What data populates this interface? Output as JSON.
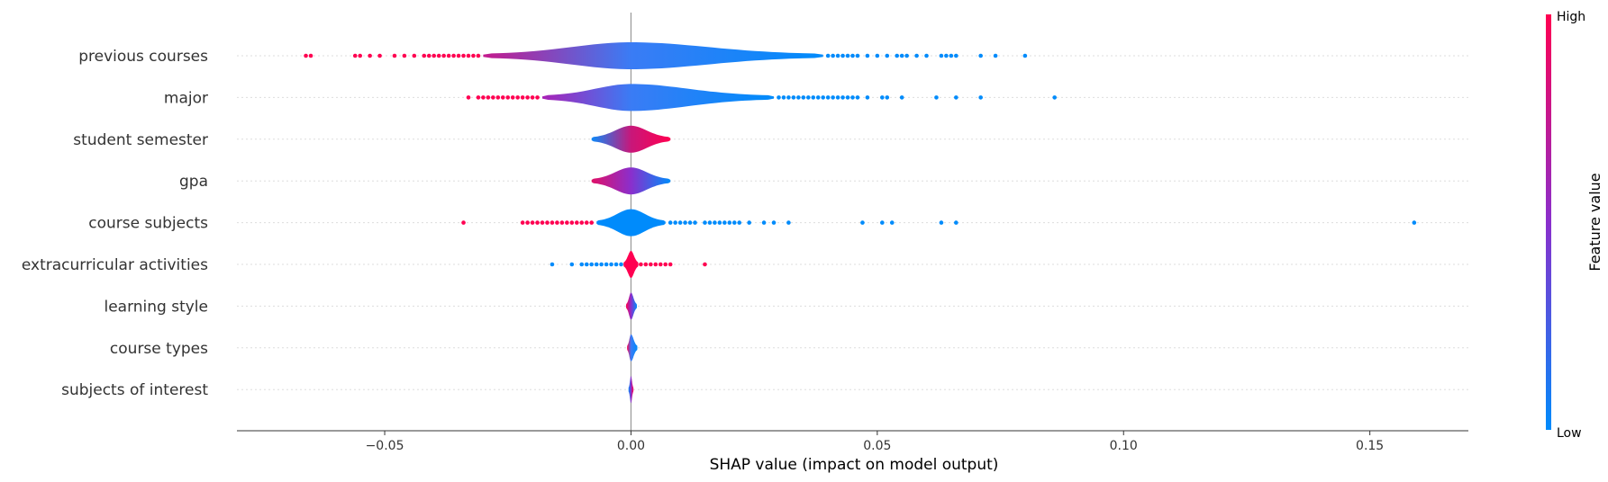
{
  "chart_data": {
    "type": "violin",
    "features": [
      "previous courses",
      "major",
      "student semester",
      "gpa",
      "course subjects",
      "extracurricular activities",
      "learning style",
      "course types",
      "subjects of interest"
    ],
    "xlabel": "SHAP value (impact on model output)",
    "xlim": [
      -0.08,
      0.17
    ],
    "xticks": [
      {
        "value": -0.05,
        "label": "−0.05"
      },
      {
        "value": 0.0,
        "label": "0.00"
      },
      {
        "value": 0.05,
        "label": "0.05"
      },
      {
        "value": 0.1,
        "label": "0.10"
      },
      {
        "value": 0.15,
        "label": "0.15"
      }
    ],
    "colorbar": {
      "title": "Feature value",
      "high_label": "High",
      "low_label": "Low",
      "high_color": "#ff0051",
      "mid_color": "#8a2fcc",
      "low_color": "#008bfb"
    },
    "violins": [
      {
        "feature": "previous courses",
        "left": -0.03,
        "right": 0.039,
        "left_color": "#c41a8c",
        "center_color": "#3a7cf5",
        "right_color": "#008bfb",
        "outliers_high": [
          -0.066,
          -0.065,
          -0.056,
          -0.055,
          -0.053,
          -0.051,
          -0.048,
          -0.046,
          -0.044,
          -0.042,
          -0.041,
          -0.04,
          -0.039,
          -0.038,
          -0.037,
          -0.036,
          -0.035,
          -0.034,
          -0.033,
          -0.032,
          -0.031
        ],
        "outliers_low": [
          0.04,
          0.041,
          0.042,
          0.043,
          0.044,
          0.045,
          0.046,
          0.048,
          0.05,
          0.052,
          0.054,
          0.055,
          0.056,
          0.058,
          0.06,
          0.063,
          0.064,
          0.065,
          0.066,
          0.071,
          0.074,
          0.08
        ]
      },
      {
        "feature": "major",
        "left": -0.018,
        "right": 0.029,
        "left_color": "#a922b6",
        "center_color": "#3a7cf5",
        "right_color": "#008bfb",
        "outliers_high": [
          -0.033,
          -0.031,
          -0.03,
          -0.029,
          -0.028,
          -0.027,
          -0.026,
          -0.025,
          -0.024,
          -0.023,
          -0.022,
          -0.021,
          -0.02,
          -0.019
        ],
        "outliers_low": [
          0.03,
          0.031,
          0.032,
          0.033,
          0.034,
          0.035,
          0.036,
          0.037,
          0.038,
          0.039,
          0.04,
          0.041,
          0.042,
          0.043,
          0.044,
          0.045,
          0.046,
          0.048,
          0.051,
          0.052,
          0.055,
          0.062,
          0.066,
          0.071,
          0.086
        ]
      },
      {
        "feature": "student semester",
        "left": -0.008,
        "right": 0.008,
        "left_color": "#0d89f9",
        "center_color": "#c8177a",
        "right_color": "#ff0051",
        "outliers_high": [],
        "outliers_low": []
      },
      {
        "feature": "gpa",
        "left": -0.008,
        "right": 0.008,
        "left_color": "#e01068",
        "center_color": "#8a2fcc",
        "right_color": "#008bfb",
        "outliers_high": [],
        "outliers_low": []
      },
      {
        "feature": "course subjects",
        "left": -0.007,
        "right": 0.007,
        "left_color": "#008bfb",
        "center_color": "#008bfb",
        "right_color": "#008bfb",
        "outliers_high": [
          -0.034,
          -0.022,
          -0.021,
          -0.02,
          -0.019,
          -0.018,
          -0.017,
          -0.016,
          -0.015,
          -0.014,
          -0.013,
          -0.012,
          -0.011,
          -0.01,
          -0.009,
          -0.008
        ],
        "outliers_low": [
          0.008,
          0.009,
          0.01,
          0.011,
          0.012,
          0.013,
          0.015,
          0.016,
          0.017,
          0.018,
          0.019,
          0.02,
          0.021,
          0.022,
          0.024,
          0.027,
          0.029,
          0.032,
          0.047,
          0.051,
          0.053,
          0.063,
          0.066,
          0.159
        ]
      },
      {
        "feature": "extracurricular activities",
        "left": -0.0015,
        "right": 0.0015,
        "left_color": "#ff0051",
        "center_color": "#ff0051",
        "right_color": "#ff0051",
        "outliers_high": [
          0.002,
          0.003,
          0.004,
          0.005,
          0.006,
          0.007,
          0.008,
          0.015
        ],
        "outliers_low": [
          -0.016,
          -0.012,
          -0.01,
          -0.009,
          -0.008,
          -0.007,
          -0.006,
          -0.005,
          -0.004,
          -0.003,
          -0.002
        ]
      },
      {
        "feature": "learning style",
        "left": -0.001,
        "right": 0.0012,
        "left_color": "#ff0051",
        "center_color": "#8a2fcc",
        "right_color": "#008bfb",
        "outliers_high": [],
        "outliers_low": []
      },
      {
        "feature": "course types",
        "left": -0.0008,
        "right": 0.0013,
        "left_color": "#ff0051",
        "center_color": "#3a7cf5",
        "right_color": "#008bfb",
        "outliers_high": [],
        "outliers_low": []
      },
      {
        "feature": "subjects of interest",
        "left": -0.0005,
        "right": 0.0005,
        "left_color": "#008bfb",
        "center_color": "#8a2fcc",
        "right_color": "#ff0051",
        "outliers_high": [],
        "outliers_low": []
      }
    ]
  }
}
